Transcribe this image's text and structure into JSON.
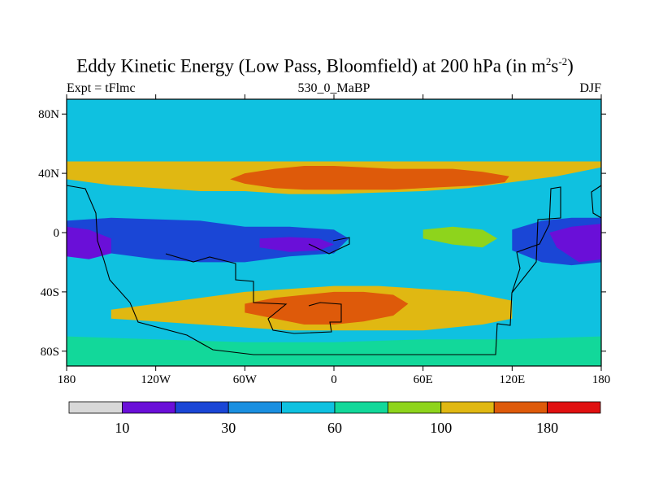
{
  "chart_data": {
    "type": "heatmap",
    "title_main": "Eddy Kinetic Energy (Low Pass, Bloomfield) at 200 hPa (in m",
    "title_exp1": "2",
    "title_mid": "s",
    "title_exp2": "-2",
    "title_end": ")",
    "left_label": "Expt = tFlmc",
    "center_label": "530_0_MaBP",
    "right_label": "DJF",
    "x_ticks": [
      "180",
      "120W",
      "60W",
      "0",
      "60E",
      "120E",
      "180"
    ],
    "x_tick_values": [
      -180,
      -120,
      -60,
      0,
      60,
      120,
      180
    ],
    "y_ticks": [
      "80N",
      "40N",
      "0",
      "40S",
      "80S"
    ],
    "y_tick_values": [
      80,
      40,
      0,
      -40,
      -80
    ],
    "xlim": [
      -180,
      180
    ],
    "ylim": [
      -90,
      90
    ],
    "colorbar_levels": [
      10,
      20,
      30,
      45,
      60,
      80,
      100,
      140,
      180
    ],
    "colorbar_labels": [
      "10",
      "30",
      "60",
      "100",
      "180"
    ],
    "colorbar_label_indices": [
      0,
      2,
      4,
      6,
      8
    ],
    "colors": [
      "#d8d8d8",
      "#6a0fd8",
      "#1a46d6",
      "#1a8fe0",
      "#0fc1e0",
      "#12d89a",
      "#8ed41c",
      "#e0b812",
      "#de5a0a",
      "#e01010"
    ],
    "contour_regions": [
      {
        "name": "nh-storm-track",
        "level": 7,
        "lon": [
          -180,
          -180,
          -150,
          -120,
          -90,
          -60,
          -30,
          0,
          30,
          60,
          90,
          120,
          150,
          180,
          180
        ],
        "lat": [
          48,
          36,
          32,
          30,
          28,
          28,
          26,
          26,
          27,
          28,
          30,
          34,
          38,
          44,
          48
        ]
      },
      {
        "name": "nh-jet-core",
        "level": 8,
        "lon": [
          -70,
          -60,
          -40,
          -20,
          0,
          20,
          40,
          60,
          80,
          100,
          115,
          118,
          100,
          80,
          60,
          40,
          20,
          0,
          -20,
          -40,
          -60
        ],
        "lat": [
          36,
          33,
          30,
          29,
          29,
          29,
          29,
          30,
          31,
          32,
          34,
          38,
          41,
          43,
          43,
          43,
          44,
          45,
          45,
          43,
          40
        ]
      },
      {
        "name": "tropical-low-west",
        "level": 2,
        "lon": [
          -180,
          -150,
          -120,
          -90,
          -60,
          -30,
          0,
          10,
          0,
          -30,
          -60,
          -90,
          -120,
          -150,
          -180
        ],
        "lat": [
          8,
          10,
          9,
          8,
          4,
          4,
          2,
          -4,
          -14,
          -16,
          -20,
          -20,
          -18,
          -14,
          -14
        ]
      },
      {
        "name": "tropical-low-core",
        "level": 1,
        "lon": [
          -180,
          -165,
          -150,
          -150,
          -165,
          -180
        ],
        "lat": [
          4,
          2,
          -4,
          -14,
          -18,
          -16
        ]
      },
      {
        "name": "tropical-min-atlantic",
        "level": 1,
        "lon": [
          -50,
          -30,
          -10,
          0,
          -10,
          -30,
          -50
        ],
        "lat": [
          -4,
          -3,
          -4,
          -8,
          -12,
          -13,
          -10
        ]
      },
      {
        "name": "tropical-low-east",
        "level": 2,
        "lon": [
          120,
          140,
          160,
          180,
          180,
          160,
          140,
          120
        ],
        "lat": [
          2,
          8,
          10,
          10,
          -20,
          -22,
          -20,
          -12
        ]
      },
      {
        "name": "tropical-low-east-core",
        "level": 1,
        "lon": [
          145,
          160,
          180,
          180,
          165,
          150
        ],
        "lat": [
          0,
          4,
          6,
          -18,
          -20,
          -10
        ]
      },
      {
        "name": "indian-ocean-band",
        "level": 6,
        "lon": [
          60,
          80,
          100,
          110,
          100,
          80,
          60
        ],
        "lat": [
          2,
          4,
          2,
          -4,
          -10,
          -8,
          -4
        ]
      },
      {
        "name": "sh-storm-track",
        "level": 7,
        "lon": [
          -150,
          -120,
          -90,
          -60,
          -30,
          0,
          30,
          60,
          90,
          120,
          120,
          100,
          80,
          60,
          40,
          20,
          0,
          -30,
          -60,
          -90,
          -120,
          -150
        ],
        "lat": [
          -52,
          -48,
          -44,
          -40,
          -38,
          -36,
          -36,
          -38,
          -40,
          -46,
          -58,
          -62,
          -64,
          -66,
          -66,
          -66,
          -66,
          -66,
          -64,
          -62,
          -60,
          -58
        ]
      },
      {
        "name": "sh-jet-core",
        "level": 8,
        "lon": [
          -60,
          -40,
          -20,
          0,
          20,
          40,
          50,
          40,
          20,
          0,
          -20,
          -40,
          -60
        ],
        "lat": [
          -48,
          -44,
          -42,
          -40,
          -40,
          -42,
          -48,
          -56,
          -60,
          -62,
          -62,
          -58,
          -54
        ]
      },
      {
        "name": "sh-polar-band",
        "level": 5,
        "lon": [
          -180,
          -120,
          -60,
          0,
          60,
          120,
          180,
          180,
          120,
          60,
          0,
          -60,
          -120,
          -180
        ],
        "lat": [
          -70,
          -72,
          -74,
          -74,
          -72,
          -72,
          -70,
          -90,
          -90,
          -90,
          -90,
          -90,
          -90,
          -90
        ]
      }
    ]
  }
}
